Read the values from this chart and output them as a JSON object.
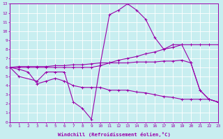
{
  "xlabel": "Windchill (Refroidissement éolien,°C)",
  "background_color": "#c8eef0",
  "grid_color": "#ffffff",
  "line_color": "#9900aa",
  "xlim": [
    0,
    23
  ],
  "ylim": [
    0,
    13
  ],
  "xticks": [
    0,
    1,
    2,
    3,
    4,
    5,
    6,
    7,
    8,
    9,
    10,
    11,
    12,
    13,
    14,
    15,
    16,
    17,
    18,
    19,
    20,
    21,
    22,
    23
  ],
  "yticks": [
    0,
    1,
    2,
    3,
    4,
    5,
    6,
    7,
    8,
    9,
    10,
    11,
    12,
    13
  ],
  "lines": [
    {
      "x": [
        0,
        1,
        3,
        4,
        5,
        6,
        7,
        8,
        9,
        10,
        11,
        12,
        13,
        14,
        15,
        16,
        17,
        18,
        19,
        20,
        21,
        22,
        23
      ],
      "y": [
        6,
        5,
        4.5,
        5.5,
        5.5,
        5.5,
        2.2,
        1.5,
        0.3,
        6.5,
        11.8,
        12.3,
        13.0,
        12.3,
        11.3,
        9.3,
        8.0,
        8.5,
        8.5,
        6.5,
        3.5,
        2.5,
        2.2
      ]
    },
    {
      "x": [
        0,
        1,
        2,
        3,
        4,
        5,
        6,
        7,
        8,
        9,
        10,
        11,
        12,
        13,
        14,
        15,
        16,
        17,
        18,
        19,
        20,
        21,
        22,
        23
      ],
      "y": [
        6,
        6,
        6,
        6,
        6,
        6,
        6,
        6,
        6,
        6,
        6.2,
        6.5,
        6.8,
        7.0,
        7.2,
        7.5,
        7.7,
        8.0,
        8.2,
        8.5,
        8.5,
        8.5,
        8.5,
        8.5
      ]
    },
    {
      "x": [
        0,
        1,
        2,
        3,
        4,
        5,
        6,
        7,
        8,
        9,
        10,
        11,
        12,
        13,
        14,
        15,
        16,
        17,
        18,
        19,
        20,
        21,
        22,
        23
      ],
      "y": [
        6,
        6.1,
        6.1,
        6.1,
        6.1,
        6.2,
        6.2,
        6.3,
        6.3,
        6.4,
        6.5,
        6.5,
        6.5,
        6.5,
        6.6,
        6.6,
        6.6,
        6.7,
        6.7,
        6.8,
        6.5,
        3.5,
        2.5,
        2.2
      ]
    },
    {
      "x": [
        0,
        1,
        2,
        3,
        4,
        5,
        6,
        7,
        8,
        9,
        10,
        11,
        12,
        13,
        14,
        15,
        16,
        17,
        18,
        19,
        20,
        21,
        22,
        23
      ],
      "y": [
        6,
        5.8,
        5.5,
        4.2,
        4.5,
        4.8,
        4.5,
        4.0,
        3.8,
        3.8,
        3.8,
        3.5,
        3.5,
        3.5,
        3.3,
        3.2,
        3.0,
        2.8,
        2.7,
        2.5,
        2.5,
        2.5,
        2.5,
        2.2
      ]
    }
  ]
}
